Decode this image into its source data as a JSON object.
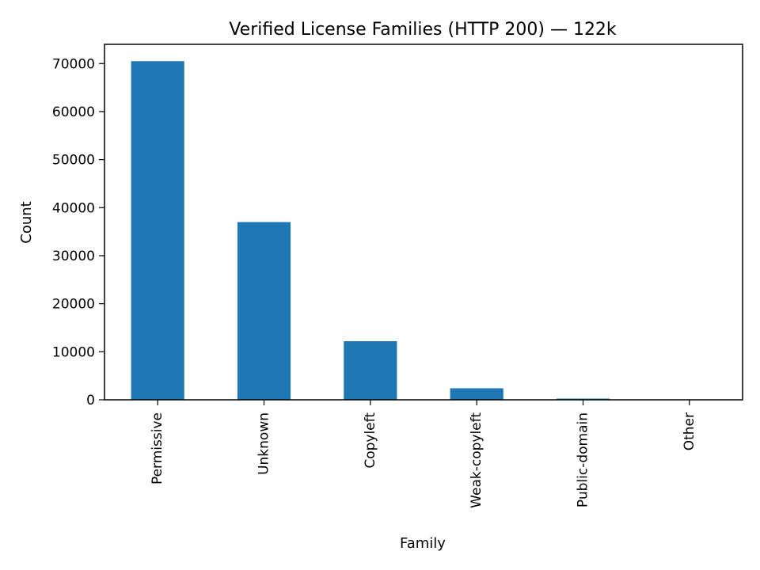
{
  "chart_data": {
    "type": "bar",
    "title": "Verified License Families (HTTP 200) — 122k",
    "xlabel": "Family",
    "ylabel": "Count",
    "categories": [
      "Permissive",
      "Unknown",
      "Copyleft",
      "Weak-copyleft",
      "Public-domain",
      "Other"
    ],
    "values": [
      70500,
      37000,
      12200,
      2400,
      250,
      60
    ],
    "ylim": [
      0,
      74000
    ],
    "yticks": [
      0,
      10000,
      20000,
      30000,
      40000,
      50000,
      60000,
      70000
    ],
    "bar_color": "#1f77b4",
    "grid": false,
    "legend": "none"
  }
}
